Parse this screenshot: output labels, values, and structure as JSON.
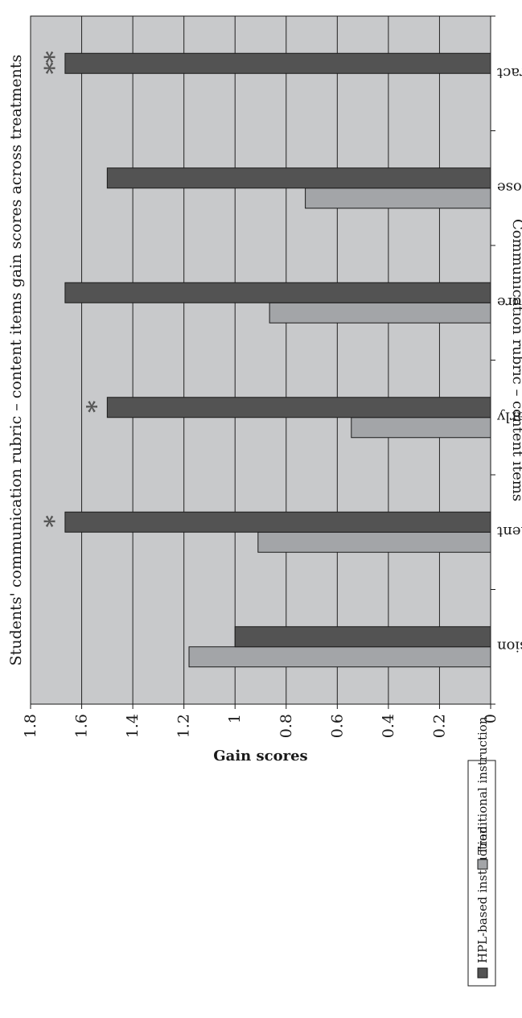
{
  "chart_data": {
    "type": "bar",
    "orientation": "vertical",
    "title": "Students' communication rubric – content items gain scores across treatments",
    "xlabel": "Communication rubric – content items",
    "ylabel": "Gain scores",
    "categories": [
      "Has a useful conclusion",
      "Makes good argument",
      "Explains ideas clearly",
      "Reflects literature",
      "Opening: Background and purpose",
      "Abstract"
    ],
    "series": [
      {
        "name": "Traditional instruction",
        "color": "#a3a5a8",
        "values": [
          1.18,
          0.91,
          0.545,
          0.865,
          0.725,
          0
        ]
      },
      {
        "name": "HPL-based instruction",
        "color": "#535353",
        "values": [
          1.0,
          1.665,
          1.5,
          1.665,
          1.5,
          1.665
        ]
      }
    ],
    "annotations": [
      "",
      "*",
      "*",
      "",
      "",
      "**"
    ],
    "ylim": [
      0,
      1.8
    ],
    "yticks": [
      "0",
      "0.2",
      "0.4",
      "0.6",
      "0.8",
      "1",
      "1.2",
      "1.4",
      "1.6",
      "1.8"
    ],
    "grid": true,
    "legend": "bottom",
    "legend_order": [
      "HPL-based instruction",
      "Traditional instruction"
    ],
    "plot_background": "#c8c9cb"
  }
}
